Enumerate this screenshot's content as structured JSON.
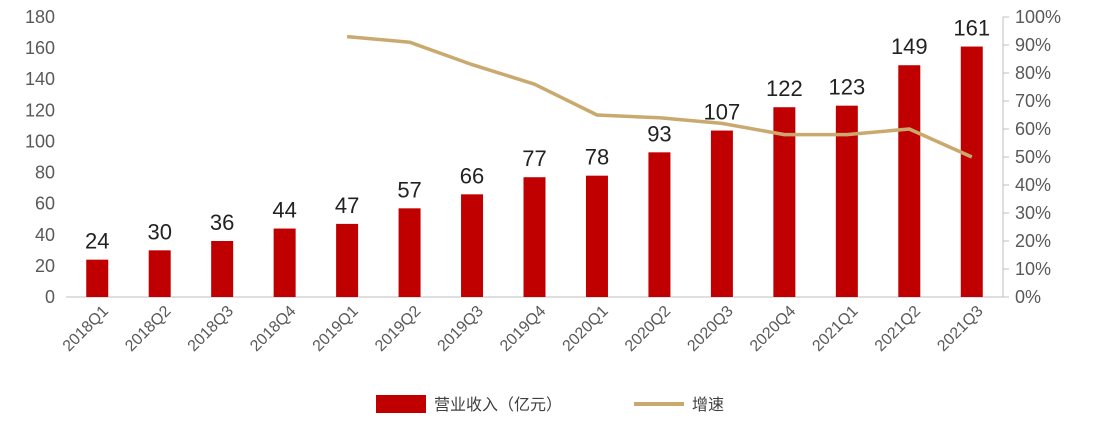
{
  "chart_data": {
    "type": "bar",
    "categories": [
      "2018Q1",
      "2018Q2",
      "2018Q3",
      "2018Q4",
      "2019Q1",
      "2019Q2",
      "2019Q3",
      "2019Q4",
      "2020Q1",
      "2020Q2",
      "2020Q3",
      "2020Q4",
      "2021Q1",
      "2021Q2",
      "2021Q3"
    ],
    "series": [
      {
        "name": "营业收入（亿元）",
        "type": "bar",
        "axis": "left",
        "color": "#C00000",
        "values": [
          24,
          30,
          36,
          44,
          47,
          57,
          66,
          77,
          78,
          93,
          107,
          122,
          123,
          149,
          161
        ],
        "labels": [
          "24",
          "30",
          "36",
          "44",
          "47",
          "57",
          "66",
          "77",
          "78",
          "93",
          "107",
          "122",
          "123",
          "149",
          "161"
        ]
      },
      {
        "name": "增速",
        "type": "line",
        "axis": "right",
        "color": "#C9A96E",
        "values": [
          null,
          null,
          null,
          null,
          0.93,
          0.91,
          0.83,
          0.76,
          0.65,
          0.64,
          0.62,
          0.58,
          0.58,
          0.6,
          0.5
        ]
      }
    ],
    "y_left": {
      "min": 0,
      "max": 180,
      "step": 20,
      "ticks": [
        "0",
        "20",
        "40",
        "60",
        "80",
        "100",
        "120",
        "140",
        "160",
        "180"
      ]
    },
    "y_right": {
      "min": 0,
      "max": 1,
      "step": 0.1,
      "ticks": [
        "0%",
        "10%",
        "20%",
        "30%",
        "40%",
        "50%",
        "60%",
        "70%",
        "80%",
        "90%",
        "100%"
      ]
    },
    "grid": false,
    "legend_position": "bottom"
  }
}
